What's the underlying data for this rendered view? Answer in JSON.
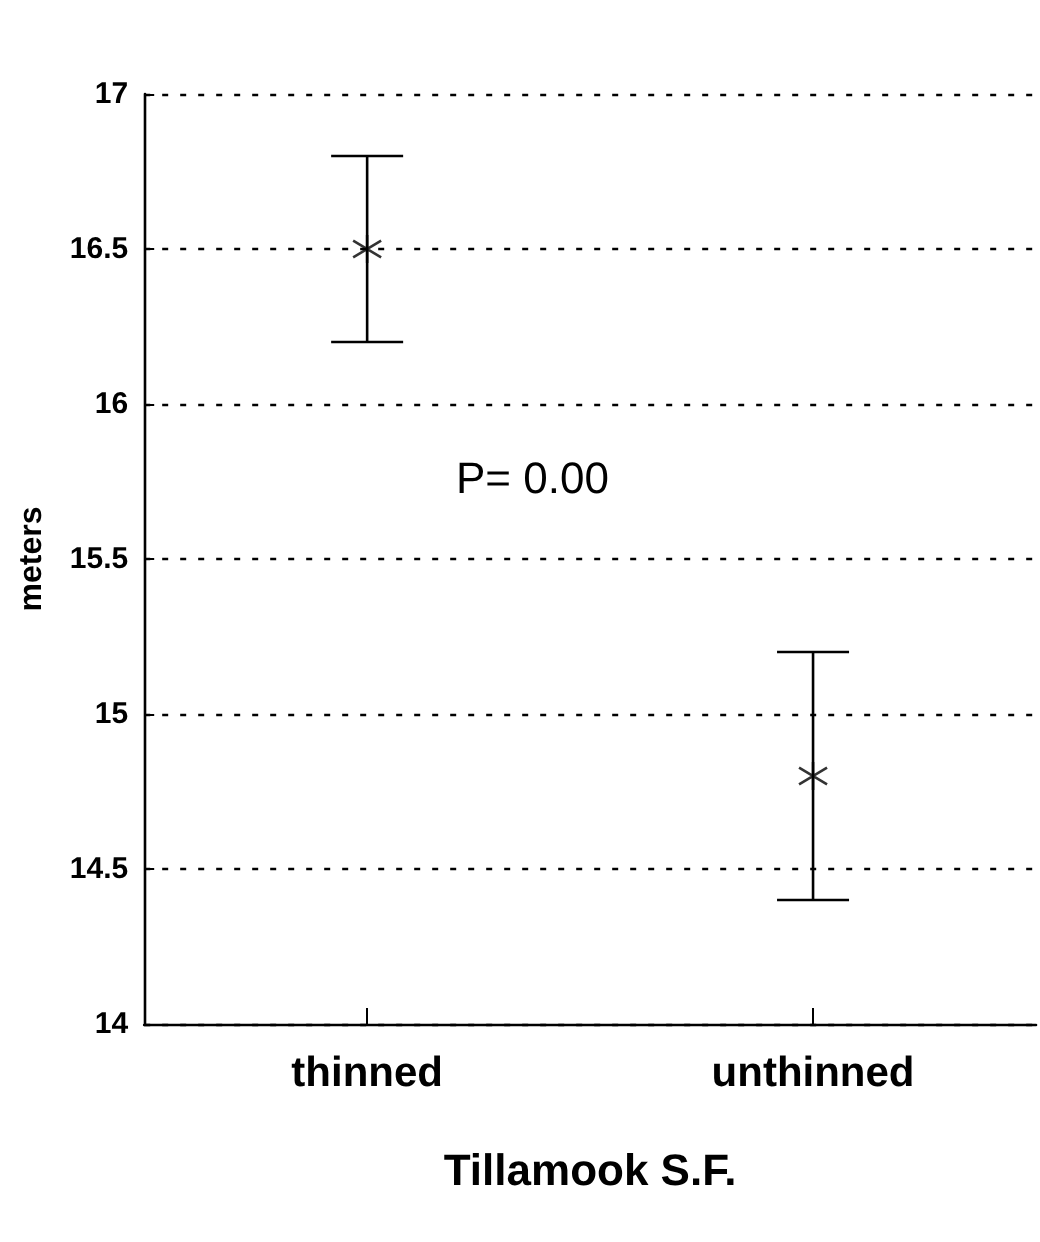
{
  "chart_data": {
    "type": "scatter",
    "xlabel": "Tillamook S.F.",
    "ylabel": "meters",
    "categories": [
      "thinned",
      "unthinned"
    ],
    "values": [
      16.5,
      14.8
    ],
    "errors": [
      0.3,
      0.4
    ],
    "color": "#000000",
    "marker": "cross",
    "ylim": [
      14,
      17
    ],
    "yticks": [
      14,
      14.5,
      15,
      15.5,
      16,
      16.5,
      17
    ],
    "grid": "y",
    "annotations": [
      "P= 0.00"
    ]
  }
}
